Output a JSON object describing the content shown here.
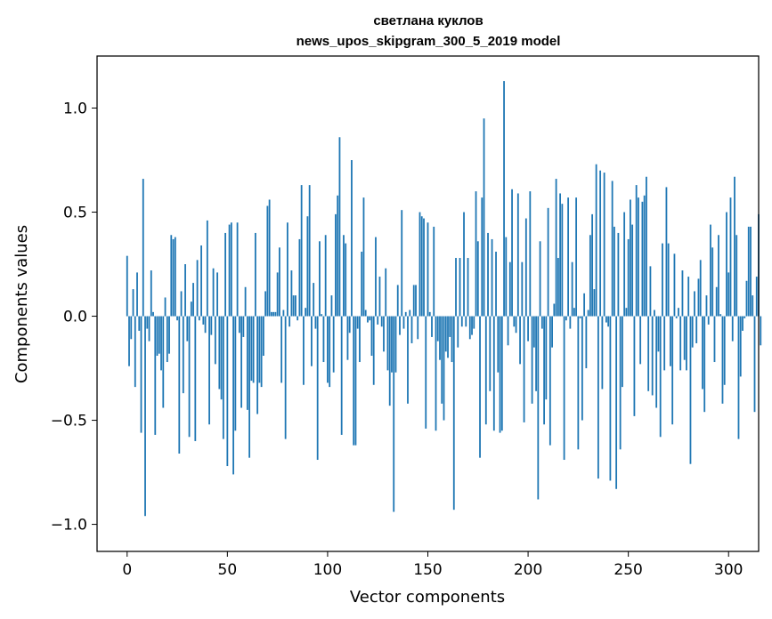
{
  "chart_data": {
    "type": "bar",
    "title": "светлана куклов",
    "subtitle": "news_upos_skipgram_300_5_2019 model",
    "xlabel": "Vector components",
    "ylabel": "Components values",
    "xlim": [
      -15,
      315
    ],
    "ylim": [
      -1.13,
      1.25
    ],
    "xticks": [
      0,
      50,
      100,
      150,
      200,
      250,
      300
    ],
    "xtick_labels": [
      "0",
      "50",
      "100",
      "150",
      "200",
      "250",
      "300"
    ],
    "yticks": [
      -1.0,
      -0.5,
      0.0,
      0.5,
      1.0
    ],
    "ytick_labels": [
      "−1.0",
      "−0.5",
      "0.0",
      "0.5",
      "1.0"
    ],
    "bar_color": "#1f77b4",
    "grid": false,
    "values": [
      0.29,
      -0.24,
      -0.11,
      0.13,
      -0.34,
      0.21,
      -0.07,
      -0.56,
      0.66,
      -0.96,
      -0.06,
      -0.12,
      0.22,
      0.02,
      -0.57,
      -0.19,
      -0.18,
      -0.26,
      -0.44,
      0.09,
      -0.22,
      -0.18,
      0.39,
      0.37,
      0.38,
      -0.02,
      -0.66,
      0.12,
      -0.37,
      0.25,
      -0.12,
      -0.58,
      0.07,
      0.16,
      -0.6,
      0.27,
      -0.02,
      0.34,
      -0.04,
      -0.08,
      0.46,
      -0.52,
      -0.09,
      0.23,
      -0.23,
      0.21,
      -0.35,
      -0.4,
      -0.59,
      0.4,
      -0.72,
      0.44,
      0.45,
      -0.76,
      -0.55,
      0.45,
      -0.08,
      -0.44,
      -0.1,
      0.14,
      -0.45,
      -0.68,
      -0.31,
      -0.32,
      0.4,
      -0.47,
      -0.32,
      -0.34,
      -0.19,
      0.12,
      0.53,
      0.56,
      0.02,
      0.02,
      0.02,
      0.21,
      0.33,
      -0.32,
      0.03,
      -0.59,
      0.45,
      -0.05,
      0.22,
      0.1,
      0.1,
      -0.02,
      0.37,
      0.63,
      -0.33,
      0.04,
      0.48,
      0.63,
      -0.24,
      0.16,
      -0.06,
      -0.69,
      0.36,
      0.01,
      -0.22,
      0.39,
      -0.32,
      -0.34,
      0.1,
      -0.27,
      0.49,
      0.58,
      0.86,
      -0.57,
      0.39,
      0.35,
      -0.21,
      -0.08,
      0.75,
      -0.62,
      -0.62,
      -0.06,
      -0.22,
      0.31,
      0.57,
      0.03,
      -0.03,
      -0.02,
      -0.19,
      -0.33,
      0.38,
      -0.04,
      0.19,
      -0.05,
      -0.17,
      0.23,
      -0.26,
      -0.43,
      -0.27,
      -0.94,
      -0.27,
      0.15,
      -0.09,
      0.51,
      -0.06,
      0.02,
      -0.42,
      0.03,
      -0.13,
      0.15,
      0.15,
      -0.11,
      0.5,
      0.48,
      0.47,
      -0.54,
      0.45,
      0.02,
      -0.1,
      0.43,
      -0.55,
      -0.12,
      -0.21,
      -0.42,
      -0.5,
      -0.17,
      -0.2,
      -0.1,
      -0.22,
      -0.93,
      0.28,
      -0.15,
      0.28,
      -0.05,
      0.5,
      -0.05,
      0.28,
      -0.11,
      -0.09,
      -0.06,
      0.6,
      0.36,
      -0.68,
      0.57,
      0.95,
      -0.52,
      0.4,
      -0.36,
      0.37,
      -0.55,
      0.31,
      -0.27,
      -0.56,
      -0.55,
      1.13,
      0.38,
      -0.14,
      0.26,
      0.61,
      -0.05,
      -0.08,
      0.59,
      -0.23,
      0.26,
      -0.51,
      0.47,
      -0.12,
      0.6,
      -0.42,
      -0.15,
      -0.36,
      -0.88,
      0.36,
      -0.06,
      -0.52,
      -0.4,
      0.52,
      -0.62,
      -0.15,
      0.06,
      0.66,
      0.28,
      0.59,
      0.54,
      -0.69,
      -0.02,
      0.57,
      -0.06,
      0.26,
      0.04,
      0.57,
      -0.64,
      -0.01,
      -0.5,
      0.11,
      -0.25,
      0.03,
      0.39,
      0.49,
      0.13,
      0.73,
      -0.78,
      0.7,
      -0.35,
      0.69,
      -0.03,
      -0.05,
      -0.79,
      0.65,
      0.43,
      -0.83,
      0.4,
      -0.64,
      -0.34,
      0.5,
      0.04,
      0.37,
      0.56,
      0.44,
      -0.48,
      0.63,
      0.57,
      -0.23,
      0.55,
      0.58,
      0.67,
      -0.36,
      0.24,
      -0.38,
      0.03,
      -0.44,
      -0.17,
      -0.58,
      0.35,
      -0.26,
      0.62,
      0.35,
      -0.24,
      -0.52,
      0.3,
      -0.01,
      0.04,
      -0.26,
      0.22,
      -0.21,
      -0.26,
      0.19,
      -0.71,
      -0.15,
      0.12,
      -0.13,
      0.18,
      0.27,
      -0.35,
      -0.46,
      0.1,
      -0.04,
      0.44,
      0.33,
      -0.22,
      0.14,
      0.39,
      0.01,
      -0.42,
      -0.33,
      0.5,
      0.21,
      0.57,
      -0.12,
      0.67,
      0.39,
      -0.59,
      -0.29,
      -0.07,
      -0.01,
      0.17,
      0.43,
      0.43,
      0.1,
      -0.46,
      0.19,
      0.49,
      -0.14
    ],
    "values_shown": [
      0.29,
      -0.24,
      -0.11,
      0.13,
      -0.34,
      0.21,
      -0.07,
      -0.56,
      0.66,
      -0.96,
      -0.06,
      -0.12,
      0.22,
      0.02,
      -0.57,
      -0.19,
      -0.18,
      -0.26,
      -0.44,
      0.09,
      -0.22,
      -0.18,
      0.39,
      0.37,
      0.38,
      -0.02,
      -0.66,
      0.12,
      -0.37,
      0.25,
      -0.12,
      -0.58,
      0.07,
      0.16,
      -0.6,
      0.27,
      -0.02,
      0.34,
      -0.04,
      -0.08,
      0.46,
      -0.52,
      -0.09,
      0.23,
      -0.23,
      0.21,
      -0.35,
      -0.4,
      -0.59,
      0.4,
      -0.72,
      0.44,
      0.45,
      -0.76,
      -0.55,
      0.45,
      -0.08,
      -0.44,
      -0.1,
      0.14,
      -0.45,
      -0.68,
      -0.31,
      -0.32,
      0.4,
      -0.47,
      -0.32,
      -0.34,
      -0.19,
      0.12,
      0.53,
      0.56,
      0.02,
      0.02,
      0.02,
      0.21,
      0.33,
      -0.32,
      0.03,
      -0.59,
      0.45,
      -0.05,
      0.22,
      0.1,
      0.1,
      -0.02,
      0.37,
      0.63,
      -0.33,
      0.04,
      0.48,
      0.63,
      -0.24,
      0.16,
      -0.06,
      -0.69,
      0.36,
      0.01,
      -0.22,
      0.39,
      -0.32,
      -0.34,
      0.1,
      -0.27,
      0.49,
      0.58,
      0.86,
      -0.57,
      0.39,
      0.35,
      -0.21,
      -0.08,
      0.75,
      -0.62,
      -0.62,
      -0.06,
      -0.22,
      0.31,
      0.57,
      0.03,
      -0.03,
      -0.02,
      -0.19,
      -0.33,
      0.38,
      -0.04,
      0.19,
      -0.05,
      -0.17,
      0.23,
      -0.26,
      -0.43,
      -0.27,
      -0.94,
      -0.27,
      0.15,
      -0.09,
      0.51,
      -0.06,
      0.02,
      -0.42,
      0.03,
      -0.13,
      0.15,
      0.15,
      -0.11,
      0.5,
      0.48,
      0.47,
      -0.54,
      0.45,
      0.02,
      -0.1,
      0.43,
      -0.55,
      -0.12,
      -0.21,
      -0.42,
      -0.5,
      -0.17,
      -0.2,
      -0.1,
      -0.22,
      -0.93,
      0.28,
      -0.15,
      0.28,
      -0.05,
      0.5,
      -0.05,
      0.28,
      -0.11,
      -0.09,
      -0.06,
      0.6,
      0.36,
      -0.68,
      0.57,
      0.95,
      -0.52,
      0.4,
      -0.36,
      0.37,
      -0.55,
      0.31,
      -0.27,
      -0.56,
      -0.55,
      1.13,
      0.38,
      -0.14,
      0.26,
      0.61,
      -0.05,
      -0.08,
      0.59,
      -0.23,
      0.26,
      -0.51,
      0.47,
      -0.12,
      0.6,
      -0.42,
      -0.15,
      -0.36,
      -0.88,
      0.36,
      -0.06,
      -0.52,
      -0.4,
      0.52,
      -0.62,
      -0.15,
      0.06,
      0.66,
      0.28,
      0.59,
      0.54,
      -0.69,
      -0.02,
      0.57,
      -0.06,
      0.26,
      0.04,
      0.57,
      -0.64,
      -0.01,
      -0.5,
      0.11,
      -0.25,
      0.03,
      0.39,
      0.49,
      0.13,
      0.73,
      -0.78,
      0.7,
      -0.35,
      0.69,
      -0.03,
      -0.05,
      -0.79,
      0.65,
      0.43,
      -0.83,
      0.4,
      -0.64,
      -0.34,
      0.5,
      0.04,
      0.37,
      0.56,
      0.44,
      -0.48,
      0.63,
      0.57,
      -0.23,
      0.55,
      0.58,
      0.67,
      -0.36,
      0.24,
      -0.38,
      0.03,
      -0.44,
      -0.17,
      -0.58,
      0.35,
      -0.26,
      0.62,
      0.35,
      -0.24,
      -0.52,
      0.3,
      -0.01,
      0.04,
      -0.26,
      0.22,
      -0.21,
      -0.26,
      0.19,
      -0.71,
      -0.15,
      0.12,
      -0.13,
      0.18,
      0.27,
      -0.35,
      -0.46,
      0.1,
      -0.04,
      0.44,
      0.33,
      -0.22,
      0.14,
      0.39,
      0.01,
      -0.42,
      -0.33,
      0.5,
      0.21,
      0.57,
      -0.12,
      0.67,
      0.39,
      -0.59,
      -0.29,
      -0.07,
      -0.01,
      0.17,
      0.43,
      0.43,
      0.1,
      -0.46,
      0.19,
      0.49,
      -0.14
    ]
  }
}
